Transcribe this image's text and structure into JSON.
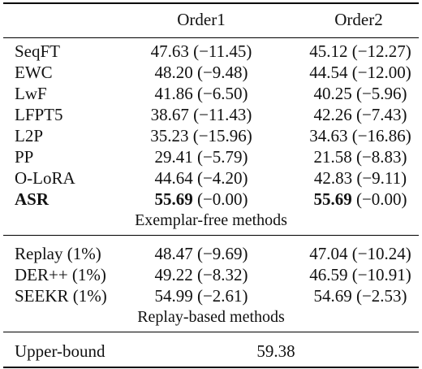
{
  "header": {
    "col1": "Order1",
    "col2": "Order2"
  },
  "exemplar_free": {
    "caption": "Exemplar-free methods",
    "rows": [
      {
        "method": "SeqFT",
        "o1": "47.63",
        "o1d": "(−11.45)",
        "o2": "45.12",
        "o2d": "(−12.27)",
        "bold": false
      },
      {
        "method": "EWC",
        "o1": "48.20",
        "o1d": "(−9.48)",
        "o2": "44.54",
        "o2d": "(−12.00)",
        "bold": false
      },
      {
        "method": "LwF",
        "o1": "41.86",
        "o1d": "(−6.50)",
        "o2": "40.25",
        "o2d": "(−5.96)",
        "bold": false
      },
      {
        "method": "LFPT5",
        "o1": "38.67",
        "o1d": "(−11.43)",
        "o2": "42.26",
        "o2d": "(−7.43)",
        "bold": false
      },
      {
        "method": "L2P",
        "o1": "35.23",
        "o1d": "(−15.96)",
        "o2": "34.63",
        "o2d": "(−16.86)",
        "bold": false
      },
      {
        "method": "PP",
        "o1": "29.41",
        "o1d": "(−5.79)",
        "o2": "21.58",
        "o2d": "(−8.83)",
        "bold": false
      },
      {
        "method": "O-LoRA",
        "o1": "44.64",
        "o1d": "(−4.20)",
        "o2": "42.83",
        "o2d": "(−9.11)",
        "bold": false
      },
      {
        "method": "ASR",
        "o1": "55.69",
        "o1d": "(−0.00)",
        "o2": "55.69",
        "o2d": "(−0.00)",
        "bold": true
      }
    ]
  },
  "replay_based": {
    "caption": "Replay-based methods",
    "rows": [
      {
        "method": "Replay (1%)",
        "o1": "48.47",
        "o1d": "(−9.69)",
        "o2": "47.04",
        "o2d": "(−10.24)",
        "bold": false
      },
      {
        "method": "DER++ (1%)",
        "o1": "49.22",
        "o1d": "(−8.32)",
        "o2": "46.59",
        "o2d": "(−10.91)",
        "bold": false
      },
      {
        "method": "SEEKR (1%)",
        "o1": "54.99",
        "o1d": "(−2.61)",
        "o2": "54.69",
        "o2d": "(−2.53)",
        "bold": false
      }
    ]
  },
  "upper_bound": {
    "method": "Upper-bound",
    "value": "59.38"
  }
}
